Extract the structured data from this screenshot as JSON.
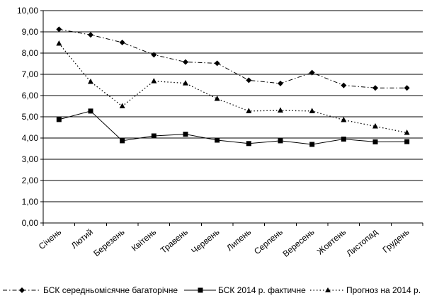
{
  "chart_data": {
    "type": "line",
    "categories": [
      "Січень",
      "Лютий",
      "Березень",
      "Квітень",
      "Травень",
      "Червень",
      "Липень",
      "Серпень",
      "Вересень",
      "Жовтень",
      "Листопад",
      "Грудень"
    ],
    "ylim": [
      0,
      10
    ],
    "yticks": [
      "0,00",
      "1,00",
      "2,00",
      "3,00",
      "4,00",
      "5,00",
      "6,00",
      "7,00",
      "8,00",
      "9,00",
      "10,00"
    ],
    "grid": true,
    "legend_position": "bottom",
    "series": [
      {
        "name": "БСК середньомісячне багаторічне",
        "values": [
          9.12,
          8.86,
          8.5,
          7.92,
          7.58,
          7.52,
          6.72,
          6.57,
          7.08,
          6.48,
          6.36,
          6.36
        ],
        "marker": "diamond",
        "line": "dash-dot"
      },
      {
        "name": "БСК 2014 р. фактичне",
        "values": [
          4.87,
          5.27,
          3.87,
          4.1,
          4.18,
          3.9,
          3.74,
          3.87,
          3.7,
          3.95,
          3.82,
          3.83
        ],
        "marker": "square",
        "line": "solid"
      },
      {
        "name": "Прогноз на 2014 р.",
        "values": [
          8.45,
          6.65,
          5.5,
          6.68,
          6.58,
          5.85,
          5.27,
          5.3,
          5.27,
          4.85,
          4.55,
          4.25
        ],
        "marker": "triangle",
        "line": "dotted"
      }
    ]
  }
}
